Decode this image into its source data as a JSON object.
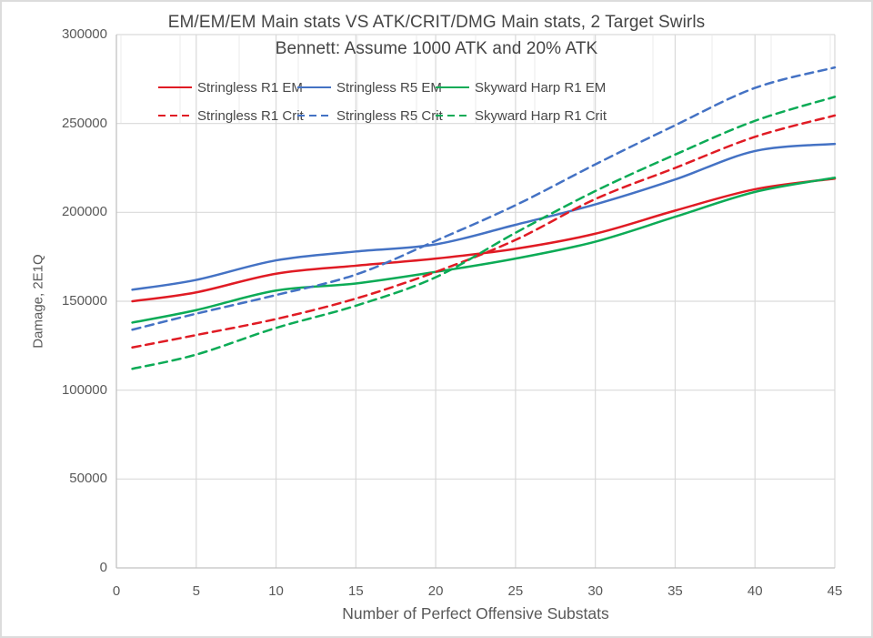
{
  "title": {
    "line1": "EM/EM/EM Main stats VS ATK/CRIT/DMG Main stats, 2 Target Swirls",
    "line2": "Bennett: Assume 1000 ATK and 20% ATK"
  },
  "axes": {
    "x": {
      "title": "Number of Perfect Offensive Substats",
      "tick_labels": [
        "0",
        "5",
        "10",
        "15",
        "20",
        "25",
        "30",
        "35",
        "40",
        "45"
      ]
    },
    "y": {
      "title": "Damage, 2E1Q",
      "tick_labels": [
        "0",
        "50000",
        "100000",
        "150000",
        "200000",
        "250000",
        "300000"
      ]
    }
  },
  "colors": {
    "red": "#e01b24",
    "blue": "#4472c4",
    "green": "#0cab56",
    "gridline": "#d9d9d9",
    "axis_line": "#c2c2c2",
    "sheet_grid": "#ebebeb",
    "text_gray": "#595959"
  },
  "chart_data": {
    "type": "line",
    "title": "EM/EM/EM Main stats VS ATK/CRIT/DMG Main stats, 2 Target Swirls",
    "subtitle": "Bennett: Assume 1000 ATK and 20% ATK",
    "xlabel": "Number of Perfect Offensive Substats",
    "ylabel": "Damage, 2E1Q",
    "xlim": [
      0,
      45
    ],
    "ylim": [
      0,
      300000
    ],
    "x_ticks": [
      0,
      5,
      10,
      15,
      20,
      25,
      30,
      35,
      40,
      45
    ],
    "y_ticks": [
      0,
      50000,
      100000,
      150000,
      200000,
      250000,
      300000
    ],
    "grid": true,
    "legend_position": "top-inside",
    "x": [
      1,
      5,
      10,
      15,
      20,
      25,
      30,
      35,
      40,
      45
    ],
    "series": [
      {
        "name": "Stringless R1 EM",
        "color": "#e01b24",
        "dash": "solid",
        "values": [
          150000,
          155000,
          165500,
          170000,
          174000,
          179500,
          188000,
          201000,
          213000,
          219000
        ]
      },
      {
        "name": "Stringless R5 EM",
        "color": "#4472c4",
        "dash": "solid",
        "values": [
          156500,
          162000,
          173000,
          178000,
          182000,
          193000,
          204500,
          218500,
          234500,
          238500
        ]
      },
      {
        "name": "Skyward Harp R1 EM",
        "color": "#0cab56",
        "dash": "solid",
        "values": [
          138000,
          145000,
          156000,
          160000,
          166500,
          174000,
          183500,
          197500,
          211500,
          219500
        ]
      },
      {
        "name": "Stringless R1 Crit",
        "color": "#e01b24",
        "dash": "dashed",
        "values": [
          124000,
          131000,
          140000,
          151500,
          166500,
          184500,
          207500,
          225000,
          242500,
          254500
        ]
      },
      {
        "name": "Stringless R5 Crit",
        "color": "#4472c4",
        "dash": "dashed",
        "values": [
          134000,
          143000,
          153500,
          165000,
          184000,
          204000,
          227000,
          249000,
          270000,
          281500
        ]
      },
      {
        "name": "Skyward Harp R1 Crit",
        "color": "#0cab56",
        "dash": "dashed",
        "values": [
          112000,
          120000,
          135000,
          147500,
          163500,
          188500,
          212000,
          232500,
          251500,
          265000
        ]
      }
    ]
  }
}
